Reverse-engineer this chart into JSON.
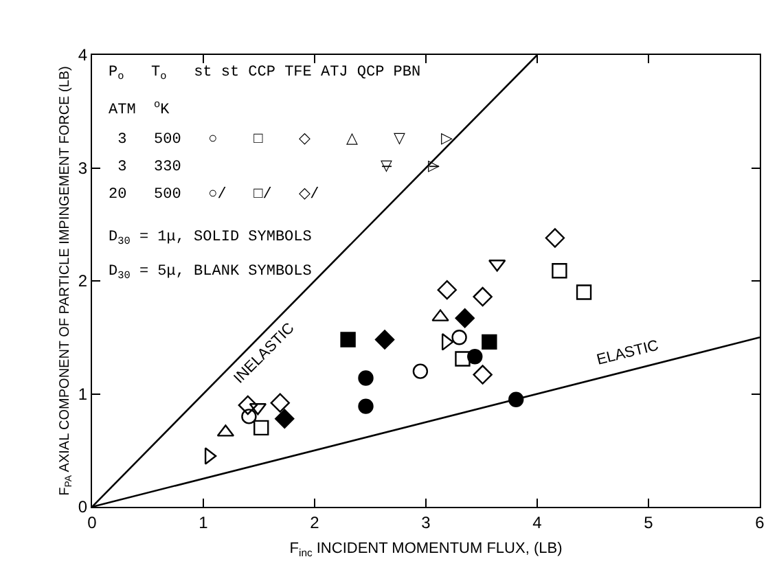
{
  "chart_data": {
    "type": "scatter",
    "xlabel": "F$_{inc}$ INCIDENT MOMENTUM FLUX, (LB)",
    "ylabel": "F$_{PA}$ AXIAL COMPONENT OF PARTICLE IMPINGEMENT FORCE (LB)",
    "xlim": [
      0,
      6
    ],
    "ylim": [
      0,
      4
    ],
    "xticks": [
      0,
      1,
      2,
      3,
      4,
      5,
      6
    ],
    "yticks": [
      0,
      1,
      2,
      3,
      4
    ],
    "series": [
      {
        "type": "line",
        "color": "#000000",
        "x": [
          0,
          4
        ],
        "values": [
          0,
          4
        ]
      },
      {
        "type": "line",
        "color": "#000000",
        "x": [
          0,
          6
        ],
        "values": [
          0,
          1.5
        ]
      },
      {
        "color": "#000000",
        "marker": "circle-open",
        "x": [
          3.3,
          1.41,
          2.95
        ],
        "values": [
          1.5,
          0.8,
          1.2
        ]
      },
      {
        "color": "#000000",
        "marker": "circle",
        "x": [
          2.46,
          2.46,
          3.44,
          3.81
        ],
        "values": [
          1.14,
          0.89,
          1.33,
          0.95
        ]
      },
      {
        "color": "#000000",
        "marker": "square-open",
        "x": [
          1.52,
          4.2,
          4.42,
          3.33
        ],
        "values": [
          0.7,
          2.09,
          1.9,
          1.31
        ]
      },
      {
        "color": "#000000",
        "marker": "square",
        "x": [
          2.3,
          3.57
        ],
        "values": [
          1.48,
          1.46
        ]
      },
      {
        "color": "#000000",
        "marker": "diamond-open",
        "x": [
          1.4,
          1.69,
          4.16,
          3.19,
          3.51,
          3.51
        ],
        "values": [
          0.9,
          0.92,
          2.38,
          1.92,
          1.86,
          1.17
        ]
      },
      {
        "color": "#000000",
        "marker": "diamond",
        "x": [
          1.73,
          2.63,
          3.35
        ],
        "values": [
          0.78,
          1.48,
          1.67
        ]
      },
      {
        "color": "#000000",
        "marker": "triangle-up-open",
        "x": [
          1.2,
          3.13
        ],
        "values": [
          0.66,
          1.68
        ]
      },
      {
        "color": "#000000",
        "marker": "triangle-down-open",
        "x": [
          1.49,
          3.64
        ],
        "values": [
          0.88,
          2.15
        ]
      },
      {
        "color": "#000000",
        "marker": "triangle-right-open",
        "x": [
          1.05,
          3.18
        ],
        "values": [
          0.45,
          1.46
        ]
      }
    ],
    "annotations": [
      "INELASTIC",
      "ELASTIC",
      "P$_{o}$   T$_{o}$   st st CCP TFE ATJ QCP PBN",
      "ATM  $^{o}$K",
      " 3   500   ○    □    ◇    △    ▽    ▷",
      " 3   330                      ▽̶    ▷̶",
      "20   500   ○/   □/   ◇/",
      "D$_{30}$ = 1μ, SOLID SYMBOLS",
      "D$_{30}$ = 5μ, BLANK SYMBOLS"
    ]
  }
}
